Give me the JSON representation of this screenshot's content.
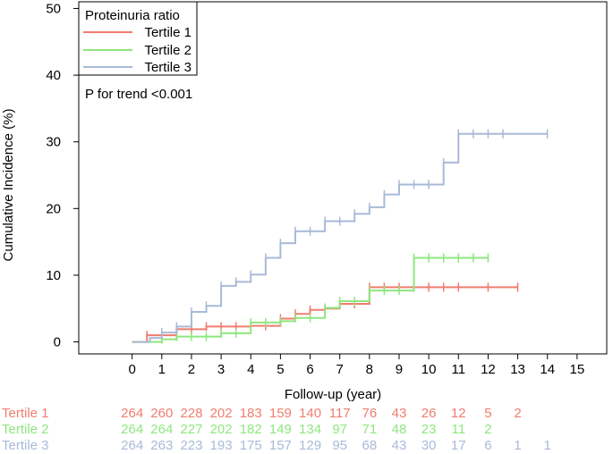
{
  "chart_data": {
    "type": "line",
    "step": true,
    "xlabel": "Follow-up (year)",
    "ylabel": "Cumulative Incidence (%)",
    "xlim": [
      -1.8,
      16
    ],
    "ylim": [
      -1.8,
      51
    ],
    "xticks": [
      0,
      1,
      2,
      3,
      4,
      5,
      6,
      7,
      8,
      9,
      10,
      11,
      12,
      13,
      14,
      15
    ],
    "yticks": [
      0,
      10,
      20,
      30,
      40,
      50
    ],
    "legend": {
      "title": "Proteinuria ratio",
      "placement": "top-left",
      "entries": [
        "Tertile 1",
        "Tertile 2",
        "Tertile 3"
      ]
    },
    "annotation": "P for trend <0.001",
    "series": [
      {
        "name": "Tertile 1",
        "color": "#f07c6e",
        "steps": [
          [
            0,
            0
          ],
          [
            0.5,
            1.0
          ],
          [
            1.5,
            1.9
          ],
          [
            2.5,
            2.3
          ],
          [
            4.0,
            2.4
          ],
          [
            5.0,
            3.5
          ],
          [
            5.5,
            4.2
          ],
          [
            6.0,
            4.8
          ],
          [
            6.5,
            5.0
          ],
          [
            7.0,
            5.7
          ],
          [
            8.0,
            8.2
          ],
          [
            13.0,
            8.2
          ]
        ],
        "censor": [
          0.5,
          1.0,
          1.5,
          2.0,
          2.5,
          3.0,
          3.5,
          4.0,
          4.5,
          5.0,
          5.5,
          6.0,
          6.5,
          7.0,
          7.5,
          8.0,
          8.5,
          9.0,
          9.5,
          10.0,
          10.5,
          11.0,
          12.0,
          13.0
        ]
      },
      {
        "name": "Tertile 2",
        "color": "#8ee67e",
        "steps": [
          [
            0,
            0
          ],
          [
            1.0,
            0.4
          ],
          [
            1.5,
            0.8
          ],
          [
            3.0,
            1.3
          ],
          [
            4.0,
            2.9
          ],
          [
            5.0,
            3.1
          ],
          [
            5.5,
            3.6
          ],
          [
            6.5,
            5.1
          ],
          [
            7.0,
            6.1
          ],
          [
            8.0,
            6.1
          ],
          [
            8.0,
            7.7
          ],
          [
            9.5,
            12.6
          ],
          [
            12.0,
            12.6
          ]
        ],
        "censor": [
          1.0,
          1.5,
          2.0,
          2.5,
          3.0,
          3.5,
          4.0,
          4.5,
          5.0,
          5.5,
          6.0,
          6.5,
          7.0,
          7.5,
          8.0,
          8.5,
          9.0,
          9.5,
          10.0,
          10.5,
          11.0,
          11.5,
          12.0
        ]
      },
      {
        "name": "Tertile 3",
        "color": "#a8bad8",
        "steps": [
          [
            0,
            0
          ],
          [
            0.6,
            0.6
          ],
          [
            1.0,
            1.4
          ],
          [
            1.5,
            2.3
          ],
          [
            2.0,
            4.5
          ],
          [
            2.5,
            5.4
          ],
          [
            3.0,
            8.4
          ],
          [
            3.5,
            9.0
          ],
          [
            4.0,
            10.1
          ],
          [
            4.5,
            12.6
          ],
          [
            5.0,
            14.8
          ],
          [
            5.5,
            16.6
          ],
          [
            6.5,
            18.1
          ],
          [
            7.5,
            19.2
          ],
          [
            8.0,
            20.2
          ],
          [
            8.5,
            22.1
          ],
          [
            9.0,
            23.6
          ],
          [
            10.5,
            26.9
          ],
          [
            11.0,
            31.2
          ],
          [
            14.0,
            31.2
          ]
        ],
        "censor": [
          1.0,
          1.5,
          2.0,
          2.5,
          3.0,
          3.5,
          4.0,
          4.5,
          5.0,
          5.5,
          6.0,
          6.5,
          7.0,
          7.5,
          8.0,
          8.5,
          9.0,
          9.5,
          10.0,
          10.5,
          11.0,
          11.5,
          12.0,
          12.5,
          14.0
        ]
      }
    ],
    "risk_table": {
      "times": [
        0,
        1,
        2,
        3,
        4,
        5,
        6,
        7,
        8,
        9,
        10,
        11,
        12,
        13,
        14
      ],
      "rows": [
        {
          "label": "Tertile 1",
          "color": "#f07c6e",
          "values": [
            "264",
            "260",
            "228",
            "202",
            "183",
            "159",
            "140",
            "117",
            "76",
            "43",
            "26",
            "12",
            "5",
            "2",
            ""
          ]
        },
        {
          "label": "Tertile 2",
          "color": "#8ee67e",
          "values": [
            "264",
            "264",
            "227",
            "202",
            "182",
            "149",
            "134",
            "97",
            "71",
            "48",
            "23",
            "11",
            "2",
            "",
            ""
          ]
        },
        {
          "label": "Tertile 3",
          "color": "#a8bad8",
          "values": [
            "264",
            "263",
            "223",
            "193",
            "175",
            "157",
            "129",
            "95",
            "68",
            "43",
            "30",
            "17",
            "6",
            "1",
            "1"
          ]
        }
      ]
    }
  }
}
